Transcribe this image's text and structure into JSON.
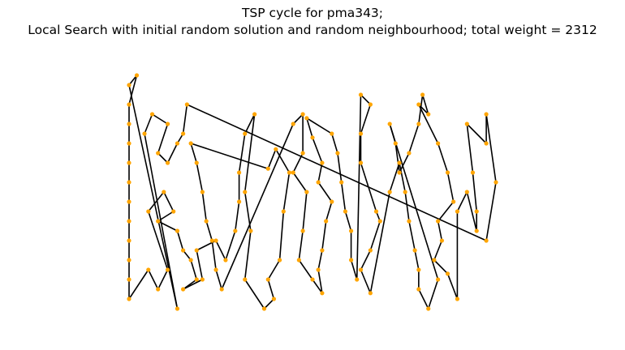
{
  "chart_data": {
    "type": "scatter",
    "title_line1": "TSP cycle for pma343;",
    "title_line2": "Local Search with initial random solution and random neighbourhood; total weight = 2312",
    "xlabel": "",
    "ylabel": "",
    "axes_visible": false,
    "grid": false,
    "legend": "none",
    "xlim": [
      0,
      19
    ],
    "ylim": [
      0,
      14
    ],
    "node_color": "#ffa500",
    "edge_color": "#000000",
    "nodes": [
      [
        0,
        12.5
      ],
      [
        0,
        11.5
      ],
      [
        0,
        10.5
      ],
      [
        0,
        9.5
      ],
      [
        0,
        8.5
      ],
      [
        0,
        7.5
      ],
      [
        0,
        6.5
      ],
      [
        0,
        5.5
      ],
      [
        0,
        4.5
      ],
      [
        0,
        3.5
      ],
      [
        0,
        2.5
      ],
      [
        0,
        1.5
      ],
      [
        0.4,
        13
      ],
      [
        1,
        6
      ],
      [
        1.8,
        7
      ],
      [
        2.3,
        6
      ],
      [
        2.5,
        5
      ],
      [
        2.8,
        4
      ],
      [
        3.2,
        3.5
      ],
      [
        3.5,
        2.5
      ],
      [
        1,
        3
      ],
      [
        1.5,
        2
      ],
      [
        2,
        3
      ],
      [
        2.5,
        1
      ],
      [
        1.5,
        5.5
      ],
      [
        2.8,
        2
      ],
      [
        3.8,
        2.5
      ],
      [
        3.5,
        4
      ],
      [
        4.5,
        4.5
      ],
      [
        5,
        3.5
      ],
      [
        5.5,
        5
      ],
      [
        5.7,
        6.5
      ],
      [
        5.7,
        8
      ],
      [
        6,
        10
      ],
      [
        6.5,
        11
      ],
      [
        6,
        7
      ],
      [
        6.3,
        5
      ],
      [
        6,
        2.5
      ],
      [
        8.5,
        10.5
      ],
      [
        9,
        11
      ],
      [
        9,
        9
      ],
      [
        8.5,
        8
      ],
      [
        9.2,
        7
      ],
      [
        9,
        5
      ],
      [
        8.8,
        3.5
      ],
      [
        9.5,
        2.5
      ],
      [
        10,
        1.8
      ],
      [
        12,
        12
      ],
      [
        12.5,
        11.5
      ],
      [
        12,
        10
      ],
      [
        12,
        8.5
      ],
      [
        12.8,
        6
      ],
      [
        13,
        5.5
      ],
      [
        12.5,
        4
      ],
      [
        12,
        3
      ],
      [
        12.5,
        1.8
      ],
      [
        13.5,
        7
      ],
      [
        14,
        8.5
      ],
      [
        14.3,
        7
      ],
      [
        14.5,
        5.5
      ],
      [
        14.8,
        4
      ],
      [
        15,
        3
      ],
      [
        15,
        2
      ],
      [
        15.5,
        1
      ],
      [
        16,
        2.5
      ],
      [
        17,
        6
      ],
      [
        17.5,
        7
      ],
      [
        18,
        5
      ],
      [
        18,
        6
      ],
      [
        17.8,
        8
      ],
      [
        17.5,
        10.5
      ],
      [
        18.5,
        9.5
      ],
      [
        18.5,
        11
      ],
      [
        19,
        7.5
      ],
      [
        18.5,
        4.5
      ],
      [
        16,
        9.5
      ],
      [
        16.5,
        8
      ],
      [
        16.8,
        6.5
      ],
      [
        16,
        5.5
      ],
      [
        16.2,
        4.5
      ],
      [
        15.8,
        3.5
      ],
      [
        16.5,
        2.8
      ],
      [
        17,
        1.5
      ],
      [
        7,
        1
      ],
      [
        7.5,
        1.5
      ],
      [
        7.2,
        2.5
      ],
      [
        7.8,
        3.5
      ],
      [
        8,
        6
      ],
      [
        8.3,
        8
      ],
      [
        7.6,
        9.2
      ],
      [
        7.2,
        8.2
      ],
      [
        3.2,
        9.5
      ],
      [
        3.5,
        8.5
      ],
      [
        3.8,
        7
      ],
      [
        4,
        5.5
      ],
      [
        4.3,
        4.5
      ],
      [
        4.5,
        3
      ],
      [
        4.8,
        2
      ],
      [
        10.5,
        10
      ],
      [
        10.8,
        9
      ],
      [
        11,
        7.5
      ],
      [
        11.2,
        6
      ],
      [
        11.5,
        5
      ],
      [
        11.5,
        3.5
      ],
      [
        11.8,
        2.5
      ],
      [
        13.5,
        10.5
      ],
      [
        13.8,
        9.5
      ],
      [
        14,
        8
      ],
      [
        14.5,
        9
      ],
      [
        15,
        10.5
      ],
      [
        15.2,
        12
      ],
      [
        15.5,
        11
      ],
      [
        15,
        11.5
      ],
      [
        3,
        11.5
      ],
      [
        2.8,
        10
      ],
      [
        2.5,
        9.5
      ],
      [
        2,
        8.5
      ],
      [
        1.5,
        9
      ],
      [
        2,
        10.5
      ],
      [
        1.2,
        11
      ],
      [
        0.8,
        10
      ],
      [
        9.8,
        3
      ],
      [
        10,
        4
      ],
      [
        10.2,
        5.5
      ],
      [
        10.5,
        6.5
      ],
      [
        9.8,
        7.5
      ],
      [
        10,
        8.5
      ],
      [
        9.5,
        9.8
      ],
      [
        9.2,
        10.8
      ]
    ],
    "tour": [
      0,
      12,
      1,
      2,
      3,
      4,
      5,
      6,
      7,
      8,
      9,
      10,
      11,
      20,
      21,
      22,
      13,
      14,
      15,
      24,
      16,
      17,
      18,
      19,
      25,
      26,
      27,
      28,
      29,
      30,
      31,
      32,
      33,
      34,
      35,
      36,
      37,
      83,
      84,
      85,
      86,
      87,
      88,
      89,
      90,
      91,
      92,
      93,
      94,
      95,
      96,
      97,
      38,
      39,
      40,
      41,
      42,
      43,
      44,
      45,
      46,
      121,
      122,
      123,
      124,
      125,
      126,
      127,
      128,
      98,
      99,
      100,
      101,
      102,
      103,
      104,
      47,
      48,
      49,
      50,
      51,
      52,
      53,
      54,
      55,
      56,
      57,
      58,
      59,
      60,
      61,
      62,
      63,
      64,
      105,
      106,
      107,
      108,
      109,
      110,
      111,
      112,
      75,
      76,
      77,
      78,
      79,
      80,
      81,
      82,
      65,
      66,
      67,
      68,
      69,
      70,
      71,
      72,
      73,
      74,
      113,
      114,
      115,
      116,
      117,
      118,
      119,
      120,
      23
    ]
  }
}
